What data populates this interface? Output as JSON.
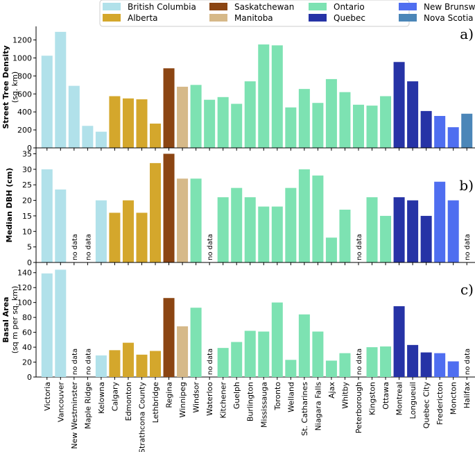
{
  "legend": [
    {
      "name": "British Columbia",
      "color": "#b1e1ea"
    },
    {
      "name": "Saskatchewan",
      "color": "#8b4513"
    },
    {
      "name": "Ontario",
      "color": "#7de2b2"
    },
    {
      "name": "New Brunswick",
      "color": "#4f6ef0"
    },
    {
      "name": "Alberta",
      "color": "#d4a72c"
    },
    {
      "name": "Manitoba",
      "color": "#d6b989"
    },
    {
      "name": "Quebec",
      "color": "#2633a6"
    },
    {
      "name": "Nova Scotia",
      "color": "#4b86b8"
    }
  ],
  "chart_data": [
    {
      "type": "bar",
      "panel_label": "a)",
      "title": "",
      "ylabel": "Street Tree Density",
      "ylabel2": "(sq. km)",
      "ylim": [
        0,
        1320
      ],
      "yticks": [
        0,
        200,
        400,
        600,
        800,
        1000,
        1200
      ],
      "no_data_label": "no data",
      "categories": [
        "Victoria",
        "Vancouver",
        "New Westminster",
        "Maple Ridge",
        "Kelowna",
        "Calgary",
        "Edmonton",
        "Strathcona County",
        "Lethbridge",
        "Regina",
        "Winnipeg",
        "Windsor",
        "Waterloo",
        "Kitchener",
        "Guelph",
        "Burlington",
        "Mississauga",
        "Toronto",
        "Welland",
        "St. Catharines",
        "Niagara Falls",
        "Ajax",
        "Whitby",
        "Peterborough",
        "Kingston",
        "Ottawa",
        "Montreal",
        "Longueuil",
        "Quebec City",
        "Fredericton",
        "Moncton",
        "Halifax"
      ],
      "provinces": [
        "British Columbia",
        "British Columbia",
        "British Columbia",
        "British Columbia",
        "British Columbia",
        "Alberta",
        "Alberta",
        "Alberta",
        "Alberta",
        "Saskatchewan",
        "Manitoba",
        "Ontario",
        "Ontario",
        "Ontario",
        "Ontario",
        "Ontario",
        "Ontario",
        "Ontario",
        "Ontario",
        "Ontario",
        "Ontario",
        "Ontario",
        "Ontario",
        "Ontario",
        "Ontario",
        "Ontario",
        "Quebec",
        "Quebec",
        "Quebec",
        "New Brunswick",
        "New Brunswick",
        "Nova Scotia"
      ],
      "values": [
        1025,
        1290,
        690,
        245,
        180,
        575,
        550,
        540,
        270,
        885,
        680,
        700,
        535,
        565,
        490,
        740,
        1150,
        1140,
        450,
        655,
        500,
        765,
        620,
        480,
        470,
        575,
        955,
        740,
        410,
        355,
        230,
        380
      ]
    },
    {
      "type": "bar",
      "panel_label": "b)",
      "title": "",
      "ylabel": "Median DBH (cm)",
      "ylim": [
        0,
        36
      ],
      "yticks": [
        0,
        5,
        10,
        15,
        20,
        25,
        30,
        35
      ],
      "no_data_label": "no data",
      "categories": [
        "Victoria",
        "Vancouver",
        "New Westminster",
        "Maple Ridge",
        "Kelowna",
        "Calgary",
        "Edmonton",
        "Strathcona County",
        "Lethbridge",
        "Regina",
        "Winnipeg",
        "Windsor",
        "Waterloo",
        "Kitchener",
        "Guelph",
        "Burlington",
        "Mississauga",
        "Toronto",
        "Welland",
        "St. Catharines",
        "Niagara Falls",
        "Ajax",
        "Whitby",
        "Peterborough",
        "Kingston",
        "Ottawa",
        "Montreal",
        "Longueuil",
        "Quebec City",
        "Fredericton",
        "Moncton",
        "Halifax"
      ],
      "values": [
        30,
        23.5,
        null,
        null,
        20,
        16,
        20,
        16,
        32,
        35,
        27,
        27,
        null,
        21,
        24,
        21,
        18,
        18,
        24,
        30,
        28,
        8,
        17,
        null,
        21,
        15,
        21,
        20,
        15,
        26,
        20,
        null
      ]
    },
    {
      "type": "bar",
      "panel_label": "c)",
      "title": "",
      "ylabel": "Basal Area",
      "ylabel2": "(sq m per sq. km)",
      "ylim": [
        0,
        150
      ],
      "yticks": [
        0,
        20,
        40,
        60,
        80,
        100,
        120,
        140
      ],
      "no_data_label": "no data",
      "categories": [
        "Victoria",
        "Vancouver",
        "New Westminster",
        "Maple Ridge",
        "Kelowna",
        "Calgary",
        "Edmonton",
        "Strathcona County",
        "Lethbridge",
        "Regina",
        "Winnipeg",
        "Windsor",
        "Waterloo",
        "Kitchener",
        "Guelph",
        "Burlington",
        "Mississauga",
        "Toronto",
        "Welland",
        "St. Catharines",
        "Niagara Falls",
        "Ajax",
        "Whitby",
        "Peterborough",
        "Kingston",
        "Ottawa",
        "Montreal",
        "Longueuil",
        "Quebec City",
        "Fredericton",
        "Moncton",
        "Halifax"
      ],
      "values": [
        139,
        144,
        null,
        null,
        29,
        36,
        46,
        30,
        35,
        106,
        68,
        93,
        null,
        39,
        47,
        62,
        61,
        100,
        23,
        84,
        61,
        22,
        32,
        null,
        40,
        41,
        95,
        43,
        33,
        32,
        21,
        null
      ]
    }
  ]
}
